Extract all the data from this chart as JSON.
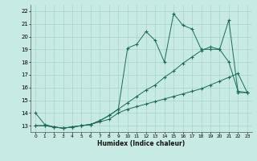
{
  "xlabel": "Humidex (Indice chaleur)",
  "xlim": [
    -0.5,
    23.5
  ],
  "ylim": [
    12.5,
    22.5
  ],
  "xticks": [
    0,
    1,
    2,
    3,
    4,
    5,
    6,
    7,
    8,
    9,
    10,
    11,
    12,
    13,
    14,
    15,
    16,
    17,
    18,
    19,
    20,
    21,
    22,
    23
  ],
  "yticks": [
    13,
    14,
    15,
    16,
    17,
    18,
    19,
    20,
    21,
    22
  ],
  "bg_color": "#c8eae4",
  "grid_color": "#a8d4cc",
  "line_color": "#1a6b58",
  "line1_x": [
    0,
    1,
    2,
    3,
    4,
    5,
    6,
    7,
    8,
    9,
    10,
    11,
    12,
    13,
    14,
    15,
    16,
    17,
    18,
    19,
    20,
    21,
    22,
    23
  ],
  "line1_y": [
    14.0,
    13.1,
    12.9,
    12.8,
    12.9,
    13.0,
    13.1,
    13.4,
    13.8,
    14.3,
    19.1,
    19.4,
    20.4,
    19.7,
    18.0,
    21.8,
    20.9,
    20.6,
    19.0,
    19.0,
    19.0,
    21.3,
    15.6,
    15.6
  ],
  "line2_x": [
    0,
    1,
    2,
    3,
    4,
    5,
    6,
    7,
    8,
    9,
    10,
    11,
    12,
    13,
    14,
    15,
    16,
    17,
    18,
    19,
    20,
    21,
    22,
    23
  ],
  "line2_y": [
    13.0,
    13.0,
    12.9,
    12.8,
    12.9,
    13.0,
    13.1,
    13.4,
    13.8,
    14.3,
    14.8,
    15.3,
    15.8,
    16.2,
    16.8,
    17.3,
    17.9,
    18.4,
    18.9,
    19.2,
    19.0,
    18.0,
    15.7,
    15.6
  ],
  "line3_x": [
    0,
    1,
    2,
    3,
    4,
    5,
    6,
    7,
    8,
    9,
    10,
    11,
    12,
    13,
    14,
    15,
    16,
    17,
    18,
    19,
    20,
    21,
    22,
    23
  ],
  "line3_y": [
    13.0,
    13.0,
    12.9,
    12.8,
    12.9,
    13.0,
    13.1,
    13.3,
    13.5,
    14.0,
    14.3,
    14.5,
    14.7,
    14.9,
    15.1,
    15.3,
    15.5,
    15.7,
    15.9,
    16.2,
    16.5,
    16.8,
    17.1,
    15.6
  ]
}
